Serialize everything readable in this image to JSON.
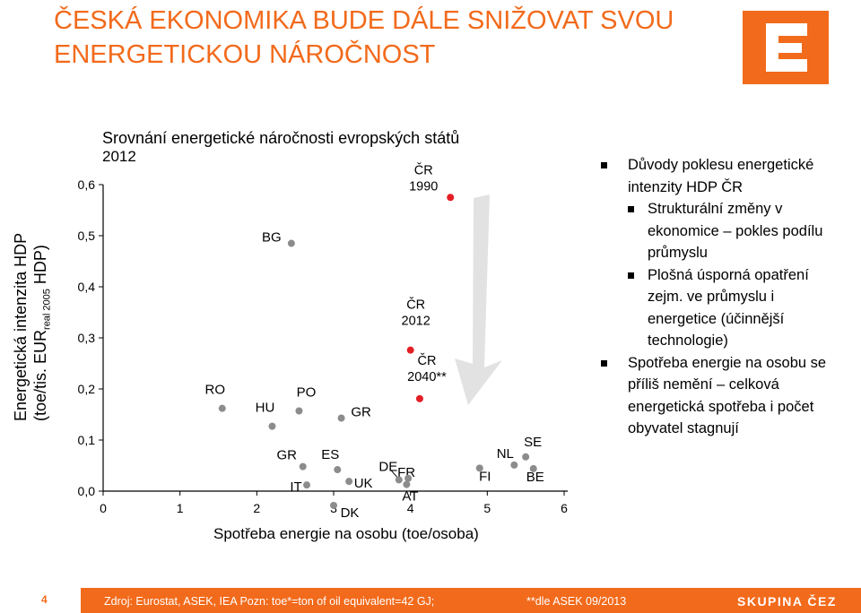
{
  "header": {
    "title_line1": "ČESKÁ EKONOMIKA BUDE DÁLE SNIŽOVAT SVOU",
    "title_line2": "ENERGETICKOU NÁROČNOST"
  },
  "colors": {
    "accent": "#f26a1b",
    "point": "#8c8c8c",
    "cr_point": "#e31e24"
  },
  "chart_data": {
    "type": "scatter",
    "title": "Srovnání energetické náročnosti evropských států",
    "subtitle": "2012",
    "ylabel_line1": "Energetická intenzita HDP",
    "ylabel_line2_pre": "(toe/tis. EUR",
    "ylabel_sub": "real 2005",
    "ylabel_line2_post": " HDP)",
    "xlabel": "Spotřeba energie na osobu (toe/osoba)",
    "xlim": [
      0,
      6
    ],
    "ylim": [
      0,
      0.6
    ],
    "xticks": [
      "0",
      "1",
      "2",
      "3",
      "4",
      "5",
      "6"
    ],
    "yticks": [
      "0,0",
      "0,1",
      "0,2",
      "0,3",
      "0,4",
      "0,5",
      "0,6"
    ],
    "points": [
      {
        "label": "RO",
        "x": 1.55,
        "y": 0.162,
        "color": "grey"
      },
      {
        "label": "BG",
        "x": 2.45,
        "y": 0.485,
        "color": "grey"
      },
      {
        "label": "HU",
        "x": 2.2,
        "y": 0.127,
        "color": "grey"
      },
      {
        "label": "PO",
        "x": 2.55,
        "y": 0.157,
        "color": "grey"
      },
      {
        "label": "GR",
        "x": 2.6,
        "y": 0.048,
        "color": "grey"
      },
      {
        "label": "IT",
        "x": 2.65,
        "y": 0.012,
        "color": "grey"
      },
      {
        "label": "GR",
        "x": 3.1,
        "y": 0.143,
        "color": "grey"
      },
      {
        "label": "ES",
        "x": 3.05,
        "y": 0.042,
        "color": "grey"
      },
      {
        "label": "UK",
        "x": 3.2,
        "y": 0.019,
        "color": "grey"
      },
      {
        "label": "DK",
        "x": 3.0,
        "y": -0.028,
        "color": "grey"
      },
      {
        "label": "DE",
        "x": 3.85,
        "y": 0.022,
        "color": "grey"
      },
      {
        "label": "FR",
        "x": 3.97,
        "y": 0.025,
        "color": "grey"
      },
      {
        "label": "AT",
        "x": 3.95,
        "y": 0.013,
        "color": "grey"
      },
      {
        "label": "FI",
        "x": 4.9,
        "y": 0.045,
        "color": "grey"
      },
      {
        "label": "NL",
        "x": 5.35,
        "y": 0.051,
        "color": "grey"
      },
      {
        "label": "SE",
        "x": 5.5,
        "y": 0.067,
        "color": "grey"
      },
      {
        "label": "BE",
        "x": 5.6,
        "y": 0.044,
        "color": "grey"
      },
      {
        "label": "ČR 1990",
        "x": 4.52,
        "y": 0.575,
        "color": "red"
      },
      {
        "label": "ČR 2012",
        "x": 4.0,
        "y": 0.276,
        "color": "red"
      },
      {
        "label": "ČR 2040**",
        "x": 4.12,
        "y": 0.181,
        "color": "red"
      }
    ]
  },
  "bullets": {
    "b1": "Důvody poklesu energetické intenzity HDP ČR",
    "b1a": "Strukturální změny v ekonomice – pokles podílu průmyslu",
    "b1b": "Plošná úsporná opatření zejm. ve průmyslu i energetice (účinnější technologie)",
    "b2": "Spotřeba energie na osobu se příliš nemění – celková energetická spotřeba i počet obyvatel stagnují"
  },
  "footer": {
    "page": "4",
    "source": "Zdroj: Eurostat, ASEK, IEA Pozn: toe*=ton of oil equivalent=42 GJ;",
    "note": "**dle ASEK 09/2013",
    "brand": "SKUPINA ČEZ"
  }
}
